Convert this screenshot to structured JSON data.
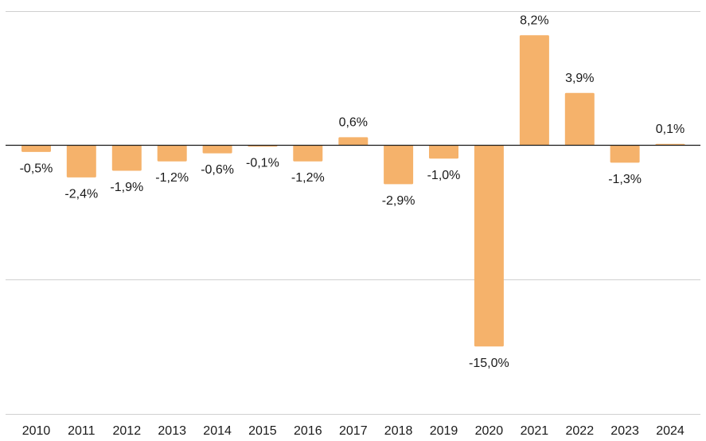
{
  "colors": {
    "bar": "#f5b26b",
    "gridline": "#d0d0d0",
    "axis": "#1a1a1a",
    "text": "#1a1a1a"
  },
  "chart_data": {
    "type": "bar",
    "title": "",
    "xlabel": "",
    "ylabel": "",
    "ylim": [
      -20,
      10
    ],
    "gridlines": [
      -20,
      -10,
      10
    ],
    "grid": true,
    "legend": "none",
    "categories": [
      "2010",
      "2011",
      "2012",
      "2013",
      "2014",
      "2015",
      "2016",
      "2017",
      "2018",
      "2019",
      "2020",
      "2021",
      "2022",
      "2023",
      "2024"
    ],
    "values": [
      -0.5,
      -2.4,
      -1.9,
      -1.2,
      -0.6,
      -0.1,
      -1.2,
      0.6,
      -2.9,
      -1.0,
      -15.0,
      8.2,
      3.9,
      -1.3,
      0.1
    ],
    "value_labels": [
      "-0,5%",
      "-2,4%",
      "-1,9%",
      "-1,2%",
      "-0,6%",
      "-0,1%",
      "-1,2%",
      "0,6%",
      "-2,9%",
      "-1,0%",
      "-15,0%",
      "8,2%",
      "3,9%",
      "-1,3%",
      "0,1%"
    ]
  }
}
